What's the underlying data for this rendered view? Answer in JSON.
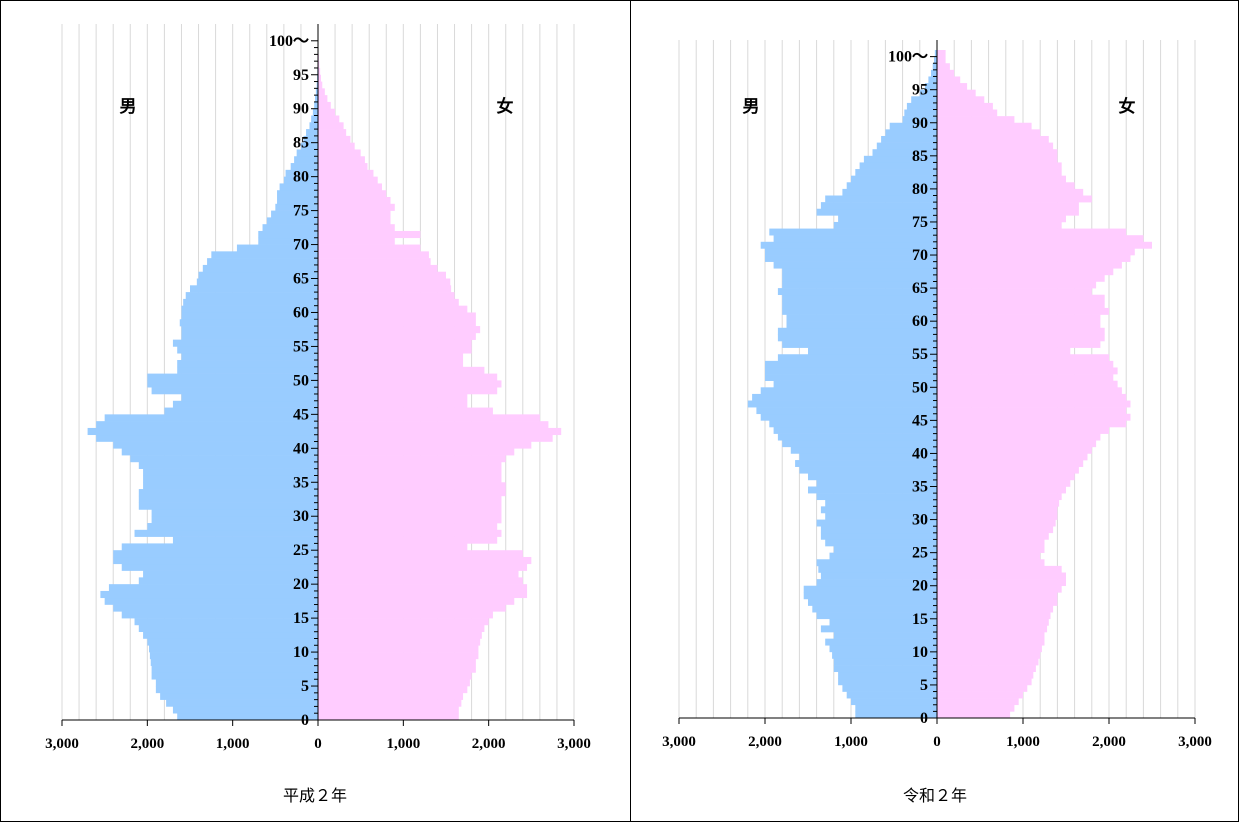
{
  "chart_data": [
    {
      "type": "bar",
      "title": "",
      "caption": "平成２年",
      "left_label": "男",
      "right_label": "女",
      "xlim": [
        -3000,
        3000
      ],
      "x_ticks": [
        -3000,
        -2000,
        -1000,
        0,
        1000,
        2000,
        3000
      ],
      "x_tick_labels": [
        "3,000",
        "2,000",
        "1,000",
        "0",
        "1,000",
        "2,000",
        "3,000"
      ],
      "y_ticks": [
        0,
        5,
        10,
        15,
        20,
        25,
        30,
        35,
        40,
        45,
        50,
        55,
        60,
        65,
        70,
        75,
        80,
        85,
        90,
        95,
        100
      ],
      "y_tick_labels": [
        "0",
        "5",
        "10",
        "15",
        "20",
        "25",
        "30",
        "35",
        "40",
        "45",
        "50",
        "55",
        "60",
        "65",
        "70",
        "75",
        "80",
        "85",
        "90",
        "95",
        "100〜"
      ],
      "colors": {
        "male": "#99ccff",
        "female": "#ffccff"
      },
      "series": [
        {
          "name": "男",
          "values": [
            1650,
            1700,
            1780,
            1850,
            1900,
            1900,
            1950,
            1950,
            1960,
            1970,
            1980,
            2000,
            2050,
            2100,
            2150,
            2300,
            2400,
            2500,
            2550,
            2450,
            2100,
            2050,
            2300,
            2400,
            2400,
            2300,
            1700,
            2150,
            2000,
            1950,
            1950,
            2100,
            2100,
            2100,
            2050,
            2050,
            2050,
            2100,
            2200,
            2300,
            2400,
            2600,
            2700,
            2600,
            2500,
            1800,
            1700,
            1600,
            1950,
            2000,
            2000,
            1650,
            1650,
            1600,
            1650,
            1700,
            1600,
            1600,
            1620,
            1600,
            1600,
            1580,
            1550,
            1500,
            1420,
            1400,
            1350,
            1300,
            1250,
            950,
            700,
            700,
            650,
            600,
            550,
            500,
            480,
            480,
            450,
            400,
            380,
            320,
            280,
            250,
            200,
            170,
            140,
            100,
            80,
            60,
            45,
            35,
            25,
            15,
            10,
            8,
            5,
            4,
            3,
            2,
            2
          ]
        },
        {
          "name": "女",
          "values": [
            1650,
            1650,
            1680,
            1700,
            1750,
            1780,
            1800,
            1850,
            1850,
            1880,
            1880,
            1900,
            1920,
            1950,
            2000,
            2050,
            2200,
            2300,
            2450,
            2450,
            2400,
            2350,
            2450,
            2500,
            2400,
            1750,
            2100,
            2150,
            2100,
            2150,
            2150,
            2150,
            2150,
            2200,
            2200,
            2150,
            2150,
            2150,
            2200,
            2300,
            2500,
            2750,
            2850,
            2700,
            2600,
            2050,
            1750,
            1750,
            2100,
            2150,
            2100,
            1950,
            1700,
            1700,
            1800,
            1800,
            1850,
            1900,
            1850,
            1850,
            1750,
            1650,
            1600,
            1560,
            1550,
            1500,
            1400,
            1320,
            1300,
            1200,
            900,
            1200,
            900,
            850,
            850,
            900,
            850,
            800,
            750,
            700,
            650,
            580,
            550,
            500,
            430,
            380,
            330,
            300,
            250,
            200,
            150,
            110,
            80,
            50,
            35,
            25,
            15,
            10,
            6,
            4,
            3
          ]
        }
      ]
    },
    {
      "type": "bar",
      "title": "",
      "caption": "令和２年",
      "left_label": "男",
      "right_label": "女",
      "xlim": [
        -3000,
        3000
      ],
      "x_ticks": [
        -3000,
        -2000,
        -1000,
        0,
        1000,
        2000,
        3000
      ],
      "x_tick_labels": [
        "3,000",
        "2,000",
        "1,000",
        "0",
        "1,000",
        "2,000",
        "3,000"
      ],
      "y_ticks": [
        0,
        5,
        10,
        15,
        20,
        25,
        30,
        35,
        40,
        45,
        50,
        55,
        60,
        65,
        70,
        75,
        80,
        85,
        90,
        95,
        100
      ],
      "y_tick_labels": [
        "0",
        "5",
        "10",
        "15",
        "20",
        "25",
        "30",
        "35",
        "40",
        "45",
        "50",
        "55",
        "60",
        "65",
        "70",
        "75",
        "80",
        "85",
        "90",
        "95",
        "100〜"
      ],
      "colors": {
        "male": "#99ccff",
        "female": "#ffccff"
      },
      "series": [
        {
          "name": "男",
          "values": [
            950,
            950,
            1000,
            1050,
            1100,
            1150,
            1150,
            1200,
            1200,
            1220,
            1250,
            1300,
            1200,
            1350,
            1250,
            1400,
            1450,
            1500,
            1550,
            1550,
            1400,
            1350,
            1380,
            1400,
            1250,
            1200,
            1300,
            1350,
            1350,
            1400,
            1300,
            1350,
            1300,
            1400,
            1500,
            1400,
            1500,
            1600,
            1650,
            1600,
            1700,
            1800,
            1850,
            1900,
            1950,
            2050,
            2100,
            2200,
            2150,
            2050,
            1900,
            2000,
            2000,
            2000,
            1850,
            1500,
            1800,
            1850,
            1850,
            1750,
            1750,
            1800,
            1800,
            1800,
            1850,
            1800,
            1800,
            1800,
            1900,
            2000,
            2000,
            2050,
            1900,
            1950,
            1200,
            1150,
            1400,
            1350,
            1300,
            1100,
            1050,
            1000,
            950,
            900,
            850,
            750,
            700,
            650,
            600,
            550,
            400,
            380,
            350,
            300,
            200,
            140,
            100,
            70,
            50,
            35,
            25
          ]
        },
        {
          "name": "女",
          "values": [
            850,
            900,
            950,
            1000,
            1050,
            1100,
            1120,
            1150,
            1180,
            1200,
            1220,
            1250,
            1250,
            1280,
            1300,
            1320,
            1350,
            1400,
            1400,
            1450,
            1500,
            1500,
            1450,
            1250,
            1200,
            1250,
            1250,
            1300,
            1350,
            1380,
            1400,
            1400,
            1420,
            1450,
            1500,
            1550,
            1600,
            1650,
            1700,
            1750,
            1800,
            1850,
            1900,
            2000,
            2200,
            2250,
            2200,
            2250,
            2200,
            2150,
            2100,
            2050,
            2100,
            2050,
            2000,
            1550,
            1900,
            1950,
            1950,
            1900,
            1900,
            2000,
            1950,
            1950,
            1800,
            1850,
            1950,
            2050,
            2150,
            2250,
            2300,
            2500,
            2400,
            2200,
            1450,
            1500,
            1650,
            1650,
            1800,
            1700,
            1600,
            1500,
            1450,
            1450,
            1400,
            1400,
            1350,
            1300,
            1200,
            1100,
            900,
            700,
            650,
            550,
            450,
            350,
            270,
            200,
            150,
            100,
            100
          ]
        }
      ]
    }
  ]
}
